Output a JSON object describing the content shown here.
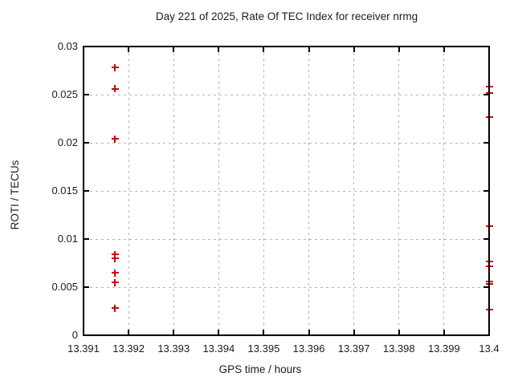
{
  "window": {
    "background": "#ffffff"
  },
  "chart_data": {
    "type": "scatter",
    "title": "Day 221 of 2025, Rate Of TEC Index for receiver nrmg",
    "xlabel": "GPS time / hours",
    "ylabel": "ROTI / TECUs",
    "xlim": [
      13.391,
      13.4
    ],
    "ylim": [
      0,
      0.03
    ],
    "x_tick_labels": [
      "13.391",
      "13.392",
      "13.393",
      "13.394",
      "13.395",
      "13.396",
      "13.397",
      "13.398",
      "13.399",
      "13.4"
    ],
    "y_tick_labels": [
      "0",
      "0.005",
      "0.01",
      "0.015",
      "0.02",
      "0.025",
      "0.03"
    ],
    "grid": true,
    "grid_style": "dashed",
    "legend_position": "none",
    "marker": "plus",
    "marker_color": "#d40000",
    "axis_color": "#000000",
    "grid_color": "#b5b5b5",
    "text_color": "#1c1c1c",
    "series": [
      {
        "name": "ROTI",
        "points": [
          [
            13.3917,
            0.0278
          ],
          [
            13.3917,
            0.0256
          ],
          [
            13.3917,
            0.0204
          ],
          [
            13.3917,
            0.0084
          ],
          [
            13.3917,
            0.008
          ],
          [
            13.3917,
            0.0065
          ],
          [
            13.3917,
            0.0055
          ],
          [
            13.3917,
            0.0028
          ],
          [
            13.4,
            0.0258
          ],
          [
            13.4,
            0.0252
          ],
          [
            13.4,
            0.0227
          ],
          [
            13.4,
            0.0113
          ],
          [
            13.4,
            0.0077
          ],
          [
            13.4,
            0.0072
          ],
          [
            13.4,
            0.0056
          ],
          [
            13.4,
            0.0053
          ],
          [
            13.4,
            0.0027
          ]
        ]
      }
    ]
  }
}
